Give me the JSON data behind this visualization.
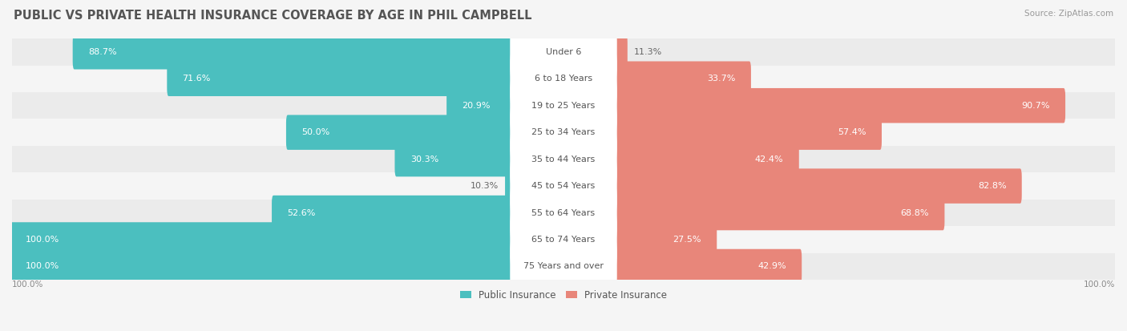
{
  "title": "PUBLIC VS PRIVATE HEALTH INSURANCE COVERAGE BY AGE IN PHIL CAMPBELL",
  "source": "Source: ZipAtlas.com",
  "categories": [
    "Under 6",
    "6 to 18 Years",
    "19 to 25 Years",
    "25 to 34 Years",
    "35 to 44 Years",
    "45 to 54 Years",
    "55 to 64 Years",
    "65 to 74 Years",
    "75 Years and over"
  ],
  "public": [
    88.7,
    71.6,
    20.9,
    50.0,
    30.3,
    10.3,
    52.6,
    100.0,
    100.0
  ],
  "private": [
    11.3,
    33.7,
    90.7,
    57.4,
    42.4,
    82.8,
    68.8,
    27.5,
    42.9
  ],
  "public_color": "#4bbfbf",
  "private_color": "#e8867a",
  "row_bg_even": "#ebebeb",
  "row_bg_odd": "#f5f5f5",
  "title_color": "#555555",
  "source_color": "#999999",
  "label_white_threshold": 18,
  "title_fontsize": 10.5,
  "label_fontsize": 8.0,
  "category_fontsize": 8.0,
  "figsize": [
    14.06,
    4.13
  ],
  "dpi": 100
}
